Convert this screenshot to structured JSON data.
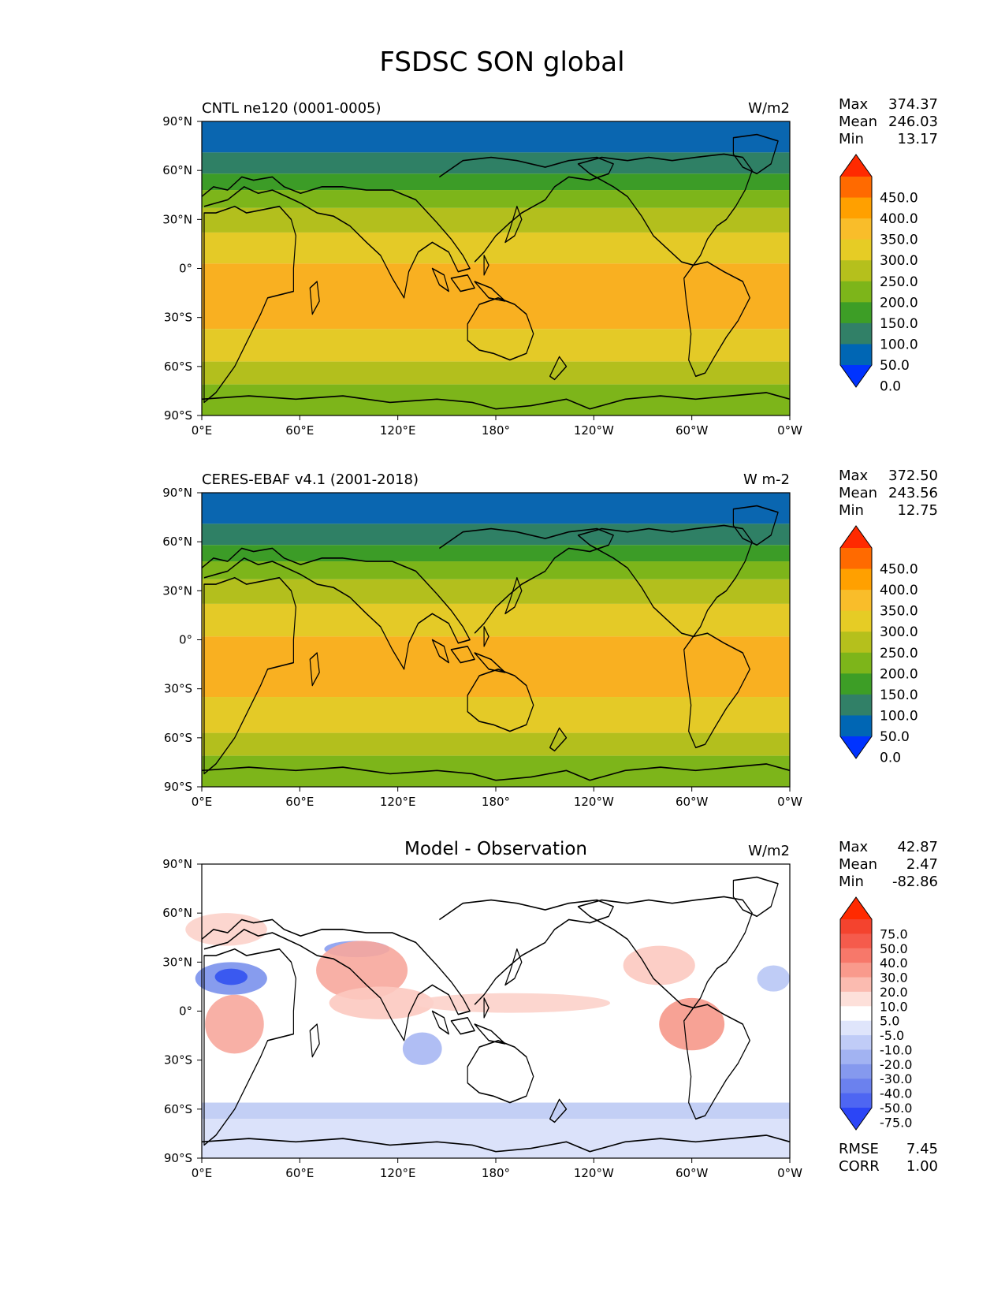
{
  "figure": {
    "title": "FSDSC SON global"
  },
  "chart_data": [
    {
      "type": "heatmap",
      "title": "CNTL ne120 (0001-0005)",
      "units": "W/m2",
      "stats": {
        "labels": [
          "Max",
          "Mean",
          "Min"
        ],
        "values": [
          "374.37",
          "246.03",
          "13.17"
        ]
      },
      "x_ticks": [
        "0°E",
        "60°E",
        "120°E",
        "180°",
        "120°W",
        "60°W",
        "0°W"
      ],
      "y_ticks": [
        "90°N",
        "60°N",
        "30°N",
        "0°",
        "30°S",
        "60°S",
        "90°S"
      ],
      "xlim": [
        0,
        360
      ],
      "ylim": [
        -90,
        90
      ],
      "colorbar": {
        "labels": [
          "450.0",
          "400.0",
          "350.0",
          "300.0",
          "250.0",
          "200.0",
          "150.0",
          "100.0",
          "50.0",
          "0.0"
        ],
        "colors": [
          "#ff2a00",
          "#ff6a00",
          "#ffa000",
          "#f9bd2a",
          "#e6cc25",
          "#b5c01c",
          "#7db51a",
          "#3d9e26",
          "#318067",
          "#0066b4",
          "#0033ff"
        ]
      },
      "zonal_bands": [
        {
          "lat_top": 90,
          "lat_bottom": 71,
          "color": "#0a66b0"
        },
        {
          "lat_top": 71,
          "lat_bottom": 58,
          "color": "#2f8065"
        },
        {
          "lat_top": 58,
          "lat_bottom": 48,
          "color": "#3c9c27"
        },
        {
          "lat_top": 48,
          "lat_bottom": 37,
          "color": "#7db51a"
        },
        {
          "lat_top": 37,
          "lat_bottom": 22,
          "color": "#b3bf1d"
        },
        {
          "lat_top": 22,
          "lat_bottom": 3,
          "color": "#e4ca27"
        },
        {
          "lat_top": 3,
          "lat_bottom": -37,
          "color": "#f9b021"
        },
        {
          "lat_top": -37,
          "lat_bottom": -57,
          "color": "#e4ca27"
        },
        {
          "lat_top": -57,
          "lat_bottom": -71,
          "color": "#b3bf1d"
        },
        {
          "lat_top": -71,
          "lat_bottom": -90,
          "color": "#7db51a"
        }
      ]
    },
    {
      "type": "heatmap",
      "title": "CERES-EBAF v4.1 (2001-2018)",
      "units": "W m-2",
      "stats": {
        "labels": [
          "Max",
          "Mean",
          "Min"
        ],
        "values": [
          "372.50",
          "243.56",
          "12.75"
        ]
      },
      "x_ticks": [
        "0°E",
        "60°E",
        "120°E",
        "180°",
        "120°W",
        "60°W",
        "0°W"
      ],
      "y_ticks": [
        "90°N",
        "60°N",
        "30°N",
        "0°",
        "30°S",
        "60°S",
        "90°S"
      ],
      "xlim": [
        0,
        360
      ],
      "ylim": [
        -90,
        90
      ],
      "colorbar": {
        "labels": [
          "450.0",
          "400.0",
          "350.0",
          "300.0",
          "250.0",
          "200.0",
          "150.0",
          "100.0",
          "50.0",
          "0.0"
        ],
        "colors": [
          "#ff2a00",
          "#ff6a00",
          "#ffa000",
          "#f9bd2a",
          "#e6cc25",
          "#b5c01c",
          "#7db51a",
          "#3d9e26",
          "#318067",
          "#0066b4",
          "#0033ff"
        ]
      },
      "zonal_bands": [
        {
          "lat_top": 90,
          "lat_bottom": 71,
          "color": "#0a66b0"
        },
        {
          "lat_top": 71,
          "lat_bottom": 58,
          "color": "#2f8065"
        },
        {
          "lat_top": 58,
          "lat_bottom": 48,
          "color": "#3c9c27"
        },
        {
          "lat_top": 48,
          "lat_bottom": 37,
          "color": "#7db51a"
        },
        {
          "lat_top": 37,
          "lat_bottom": 22,
          "color": "#b3bf1d"
        },
        {
          "lat_top": 22,
          "lat_bottom": 2,
          "color": "#e4ca27"
        },
        {
          "lat_top": 2,
          "lat_bottom": -35,
          "color": "#f9b021"
        },
        {
          "lat_top": -35,
          "lat_bottom": -57,
          "color": "#e4ca27"
        },
        {
          "lat_top": -57,
          "lat_bottom": -71,
          "color": "#b3bf1d"
        },
        {
          "lat_top": -71,
          "lat_bottom": -90,
          "color": "#7db51a"
        }
      ]
    },
    {
      "type": "heatmap",
      "title": "Model - Observation",
      "units": "W/m2",
      "stats": {
        "labels": [
          "Max",
          "Mean",
          "Min"
        ],
        "values": [
          "42.87",
          "2.47",
          "-82.86"
        ]
      },
      "x_ticks": [
        "0°E",
        "60°E",
        "120°E",
        "180°",
        "120°W",
        "60°W",
        "0°W"
      ],
      "y_ticks": [
        "90°N",
        "60°N",
        "30°N",
        "0°",
        "30°S",
        "60°S",
        "90°S"
      ],
      "xlim": [
        0,
        360
      ],
      "ylim": [
        -90,
        90
      ],
      "colorbar": {
        "labels": [
          "75.0",
          "50.0",
          "40.0",
          "30.0",
          "20.0",
          "10.0",
          "5.0",
          "-5.0",
          "-10.0",
          "-20.0",
          "-30.0",
          "-40.0",
          "-50.0",
          "-75.0"
        ],
        "colors": [
          "#ff2a00",
          "#f4432e",
          "#f55b4c",
          "#f7786a",
          "#f99a8c",
          "#fbbbb0",
          "#fde0da",
          "#ffffff",
          "#dfe5fb",
          "#c0ccf7",
          "#a2b3f2",
          "#8599ee",
          "#6b81ee",
          "#4e66f2",
          "#2b45f6"
        ]
      },
      "zonal_bands": [
        {
          "lat_top": -56,
          "lat_bottom": -66,
          "color": "#c3cff5"
        },
        {
          "lat_top": -66,
          "lat_bottom": -90,
          "color": "#dbe2fa"
        }
      ],
      "anomaly_blobs": [
        {
          "lon": 18,
          "lat": 20,
          "rx": 22,
          "ry": 10,
          "color": "#7a91ec"
        },
        {
          "lon": 18,
          "lat": 21,
          "rx": 10,
          "ry": 5,
          "color": "#3252f0"
        },
        {
          "lon": 95,
          "lat": 38,
          "rx": 20,
          "ry": 5,
          "color": "#8a9df0"
        },
        {
          "lon": 20,
          "lat": -8,
          "rx": 18,
          "ry": 18,
          "color": "#f7a79c"
        },
        {
          "lon": 98,
          "lat": 25,
          "rx": 28,
          "ry": 18,
          "color": "#f7a79c"
        },
        {
          "lon": 110,
          "lat": 5,
          "rx": 32,
          "ry": 10,
          "color": "#fcc9c0"
        },
        {
          "lon": 190,
          "lat": 5,
          "rx": 60,
          "ry": 6,
          "color": "#fcd2ca"
        },
        {
          "lon": 300,
          "lat": -8,
          "rx": 20,
          "ry": 16,
          "color": "#f6988a"
        },
        {
          "lon": 280,
          "lat": 28,
          "rx": 22,
          "ry": 12,
          "color": "#fcc9c0"
        },
        {
          "lon": 15,
          "lat": 50,
          "rx": 25,
          "ry": 10,
          "color": "#fcd2ca"
        },
        {
          "lon": 135,
          "lat": -23,
          "rx": 12,
          "ry": 10,
          "color": "#a7b7f3"
        },
        {
          "lon": 350,
          "lat": 20,
          "rx": 10,
          "ry": 8,
          "color": "#b8c6f5"
        }
      ],
      "extra_stats": {
        "labels": [
          "RMSE",
          "CORR"
        ],
        "values": [
          "7.45",
          "1.00"
        ]
      }
    }
  ]
}
